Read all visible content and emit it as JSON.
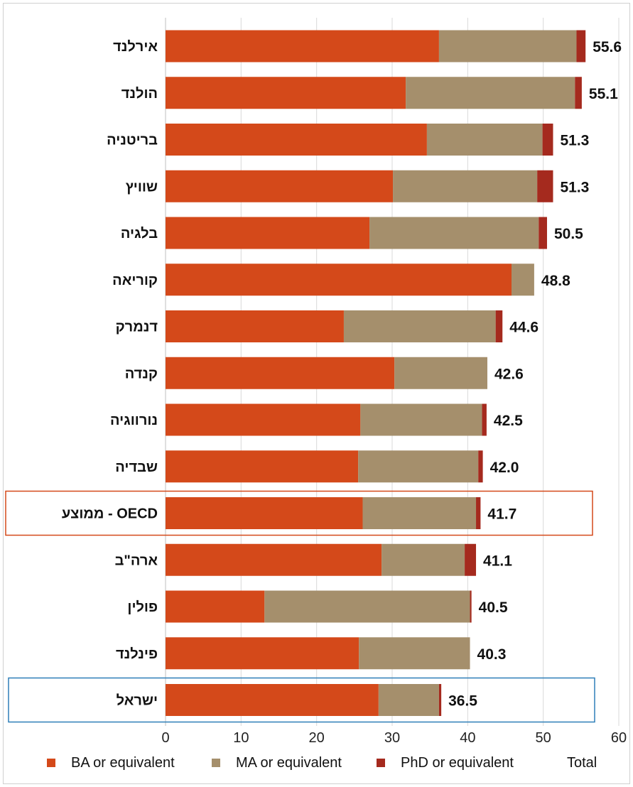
{
  "chart_data": {
    "type": "bar",
    "orientation": "horizontal",
    "stacked": true,
    "categories": [
      "אירלנד",
      "הולנד",
      "בריטניה",
      "שוויץ",
      "בלגיה",
      "קוריאה",
      "דנמרק",
      "קנדה",
      "נורווגיה",
      "שבדיה",
      "ממוצע - OECD",
      "ארה\"ב",
      "פולין",
      "פינלנד",
      "ישראל"
    ],
    "series": [
      {
        "name": "BA or equivalent",
        "color": "#d4491a",
        "values": [
          36.2,
          31.8,
          34.6,
          30.1,
          27.0,
          45.8,
          23.6,
          30.3,
          25.8,
          25.5,
          26.1,
          28.6,
          13.1,
          25.6,
          28.2
        ]
      },
      {
        "name": "MA or equivalent",
        "color": "#a58f6c",
        "values": [
          18.2,
          22.4,
          15.3,
          19.1,
          22.4,
          3.0,
          20.1,
          12.3,
          16.1,
          15.9,
          15.0,
          11.0,
          27.2,
          14.7,
          8.0
        ]
      },
      {
        "name": "PhD or equivalent",
        "color": "#a52a1e",
        "values": [
          1.2,
          0.9,
          1.4,
          2.1,
          1.1,
          0.0,
          0.9,
          0.0,
          0.6,
          0.6,
          0.6,
          1.5,
          0.2,
          0.0,
          0.3
        ]
      }
    ],
    "totals_series_name": "Total",
    "totals": [
      "55.6",
      "55.1",
      "51.3",
      "51.3",
      "50.5",
      "48.8",
      "44.6",
      "42.6",
      "42.5",
      "42.0",
      "41.7",
      "41.1",
      "40.5",
      "40.3",
      "36.5"
    ],
    "xlim": [
      0,
      60
    ],
    "xticks": [
      "0",
      "10",
      "20",
      "30",
      "40",
      "50",
      "60"
    ],
    "grid": true,
    "legend_position": "bottom",
    "highlights": [
      {
        "category": "ממוצע - OECD",
        "color": "#d4491a"
      },
      {
        "category": "ישראל",
        "color": "#2e7fb8"
      }
    ]
  }
}
